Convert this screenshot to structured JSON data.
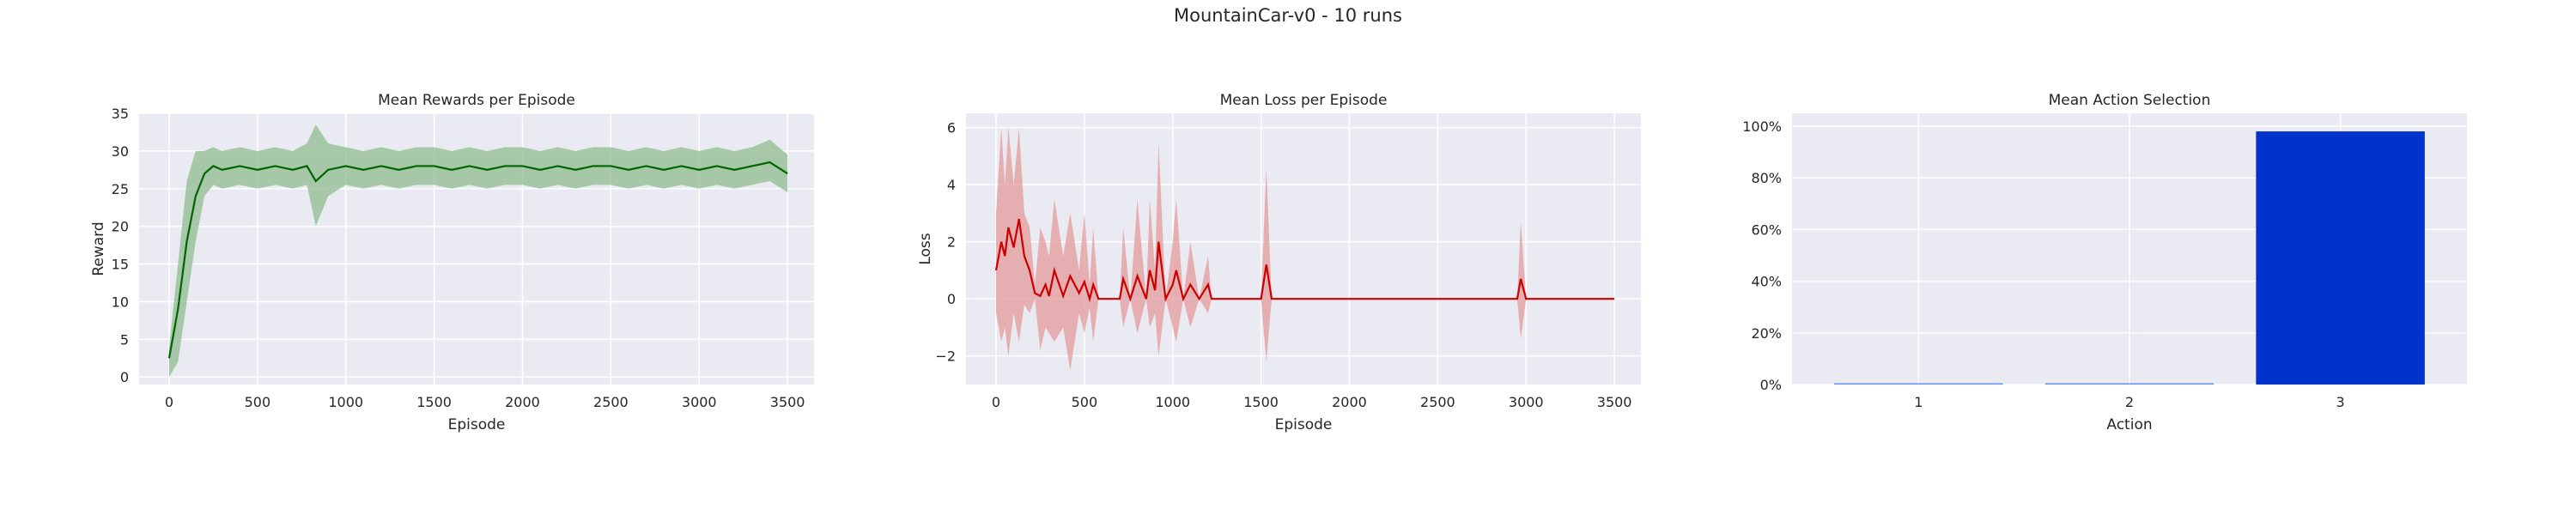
{
  "figure_title": "MountainCar-v0 - 10 runs",
  "colors": {
    "panel_bg": "#EAEAF2",
    "grid": "#FFFFFF",
    "reward_line": "#006400",
    "reward_band": "#8FBC8F",
    "loss_line": "#CC0000",
    "loss_band": "#E39A9A",
    "action_bar_main": "#0033CC",
    "action_bar_small": "#6495ED"
  },
  "chart_data": [
    {
      "type": "line",
      "title": "Mean Rewards per Episode",
      "xlabel": "Episode",
      "ylabel": "Reward",
      "xlim": [
        -170,
        3650
      ],
      "ylim": [
        -1,
        35
      ],
      "xticks": [
        0,
        500,
        1000,
        1500,
        2000,
        2500,
        3000,
        3500
      ],
      "yticks": [
        0,
        5,
        10,
        15,
        20,
        25,
        30,
        35
      ],
      "grid": true,
      "series": [
        {
          "x": [
            0,
            50,
            100,
            150,
            200,
            250,
            300,
            400,
            500,
            600,
            700,
            780,
            830,
            900,
            1000,
            1100,
            1200,
            1300,
            1400,
            1500,
            1600,
            1700,
            1800,
            1900,
            2000,
            2100,
            2200,
            2300,
            2400,
            2500,
            2600,
            2700,
            2800,
            2900,
            3000,
            3100,
            3200,
            3300,
            3400,
            3500
          ],
          "mean": [
            2.5,
            9,
            18,
            24,
            27,
            28,
            27.5,
            28,
            27.5,
            28,
            27.5,
            28,
            26,
            27.5,
            28,
            27.5,
            28,
            27.5,
            28,
            28,
            27.5,
            28,
            27.5,
            28,
            28,
            27.5,
            28,
            27.5,
            28,
            28,
            27.5,
            28,
            27.5,
            28,
            27.5,
            28,
            27.5,
            28,
            28.5,
            27
          ],
          "lower": [
            0,
            2,
            10,
            18,
            24,
            25.5,
            25,
            25.5,
            25,
            25.5,
            25,
            25.5,
            20,
            24,
            25.5,
            25,
            25.5,
            25,
            25.5,
            25.5,
            25,
            25.5,
            25,
            25.5,
            25.5,
            25,
            25.5,
            25,
            25.5,
            25.5,
            25,
            25.5,
            25,
            25.5,
            25,
            25.5,
            25,
            25.5,
            26,
            24.5
          ],
          "upper": [
            4,
            15,
            26,
            30,
            30,
            30.5,
            30,
            30.5,
            30,
            30.5,
            30,
            31,
            33.5,
            31,
            30.5,
            30,
            30.5,
            30,
            30.5,
            30.5,
            30,
            30.5,
            30,
            30.5,
            30.5,
            30,
            30.5,
            30,
            30.5,
            30.5,
            30,
            30.5,
            30,
            30.5,
            30,
            30.5,
            30,
            30.5,
            31.5,
            29.5
          ]
        }
      ]
    },
    {
      "type": "line",
      "title": "Mean Loss per Episode",
      "xlabel": "Episode",
      "ylabel": "Loss",
      "xlim": [
        -170,
        3650
      ],
      "ylim": [
        -3,
        6.5
      ],
      "xticks": [
        0,
        500,
        1000,
        1500,
        2000,
        2500,
        3000,
        3500
      ],
      "yticks": [
        -2,
        0,
        2,
        4,
        6
      ],
      "grid": true,
      "series": [
        {
          "x": [
            0,
            30,
            50,
            70,
            100,
            130,
            160,
            190,
            220,
            250,
            280,
            300,
            330,
            380,
            420,
            470,
            500,
            530,
            550,
            580,
            600,
            700,
            720,
            760,
            800,
            850,
            870,
            900,
            920,
            960,
            1000,
            1020,
            1060,
            1100,
            1150,
            1200,
            1220,
            1500,
            1530,
            1560,
            1600,
            2000,
            2950,
            2970,
            3000,
            3500
          ],
          "mean": [
            1.0,
            2.0,
            1.5,
            2.5,
            1.8,
            2.8,
            1.5,
            1.0,
            0.2,
            0.1,
            0.5,
            0.1,
            1.0,
            0.1,
            0.8,
            0.2,
            0.6,
            0.0,
            0.5,
            0.0,
            0.0,
            0.0,
            0.7,
            0.0,
            0.8,
            0.0,
            1.0,
            0.3,
            2.0,
            0.0,
            0.5,
            1.0,
            0.0,
            0.5,
            0.0,
            0.5,
            0.0,
            0.0,
            1.2,
            0.0,
            0.0,
            0.0,
            0.0,
            0.7,
            0.0,
            0.0
          ],
          "lower": [
            -0.5,
            -1.5,
            -1.0,
            -2.0,
            -0.5,
            -1.5,
            -0.2,
            -0.5,
            0.0,
            -1.8,
            -1.0,
            -1.2,
            -1.5,
            -1.0,
            -2.5,
            -0.5,
            -1.2,
            -0.3,
            -1.5,
            0.0,
            0.0,
            0.0,
            -1.0,
            0.0,
            -1.2,
            0.0,
            -1.0,
            -0.5,
            -2.0,
            0.0,
            -1.0,
            -1.5,
            0.0,
            -1.0,
            0.0,
            -0.5,
            0.0,
            0.0,
            -2.2,
            0.0,
            0.0,
            0.0,
            0.0,
            -1.4,
            0.0,
            0.0
          ],
          "upper": [
            3.0,
            6.0,
            4.0,
            6.0,
            4.0,
            6.0,
            3.0,
            2.5,
            0.5,
            2.5,
            2.0,
            1.5,
            3.5,
            1.5,
            3.0,
            1.0,
            3.0,
            0.5,
            2.5,
            0.0,
            0.0,
            0.0,
            2.5,
            0.0,
            3.5,
            0.0,
            3.5,
            1.0,
            5.5,
            0.0,
            2.0,
            3.5,
            0.0,
            2.0,
            0.0,
            1.5,
            0.0,
            0.0,
            4.6,
            0.0,
            0.0,
            0.0,
            0.0,
            2.7,
            0.0,
            0.0
          ]
        }
      ]
    },
    {
      "type": "bar",
      "title": "Mean Action Selection",
      "xlabel": "Action",
      "ylabel": "",
      "categories": [
        "1",
        "2",
        "3"
      ],
      "values": [
        0.5,
        0.5,
        98
      ],
      "ylim": [
        0,
        105
      ],
      "yticks": [
        0,
        20,
        40,
        60,
        80,
        100
      ],
      "yticklabels": [
        "0%",
        "20%",
        "40%",
        "60%",
        "80%",
        "100%"
      ],
      "grid": true
    }
  ]
}
